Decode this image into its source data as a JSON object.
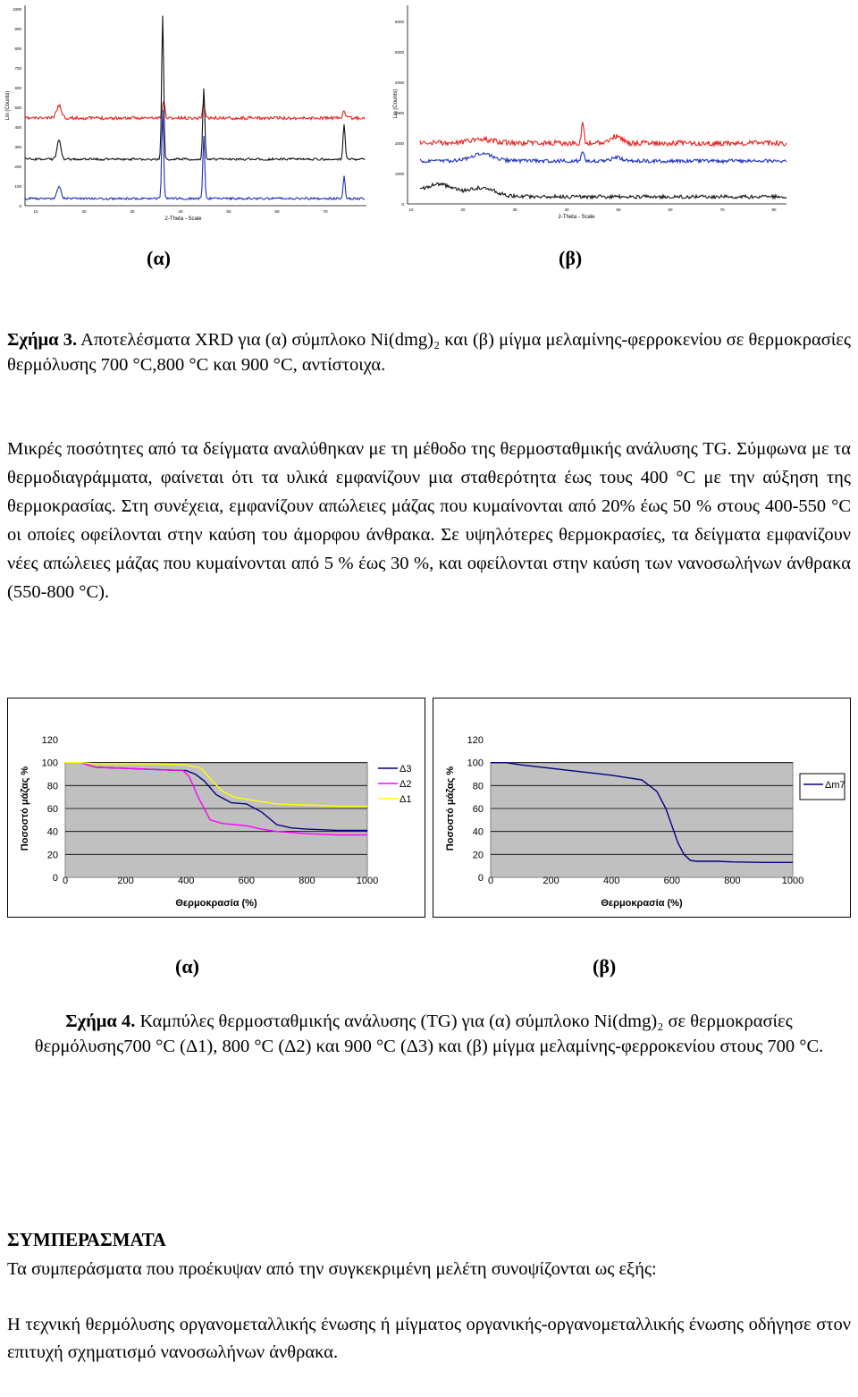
{
  "figure3": {
    "panel_a": {
      "ylabel": "Lin (Counts)",
      "xlabel": "2-Theta - Scale",
      "sublabel": "(α)",
      "yticks": [
        "0",
        "100",
        "200",
        "300",
        "400",
        "500",
        "600",
        "700",
        "800",
        "900",
        "1000"
      ],
      "xticks": [
        "10",
        "20",
        "30",
        "40",
        "50",
        "60",
        "70"
      ]
    },
    "panel_b": {
      "ylabel": "Lin (Counts)",
      "xlabel": "2-Theta - Scale",
      "sublabel": "(β)",
      "yticks": [
        "0",
        "1000",
        "2000",
        "3000",
        "4000",
        "5000",
        "6000"
      ],
      "xticks": [
        "10",
        "20",
        "30",
        "40",
        "50",
        "60",
        "70",
        "80"
      ]
    },
    "colors": {
      "red": "#e8211d",
      "black": "#111111",
      "blue": "#1f2fbf"
    },
    "caption_bold": "Σχήμα 3.",
    "caption_text": " Αποτελέσματα XRD για (α) σύμπλοκο Ni(dmg)₂ και (β) μίγμα μελαμίνης-φερροκενίου σε θερμοκρασίες θερμόλυσης 700 °C,800 °C και 900 °C, αντίστοιχα."
  },
  "paragraph": "Μικρές ποσότητες από τα δείγματα αναλύθηκαν με τη μέθοδο της θερμοσταθμικής ανάλυσης TG. Σύμφωνα με τα θερμοδιαγράμματα, φαίνεται ότι τα υλικά εμφανίζουν μια σταθερότητα έως τους 400 °C με την αύξηση της θερμοκρασίας. Στη συνέχεια, εμφανίζουν απώλειες μάζας που κυμαίνονται από 20% έως 50 % στους 400-550 °C οι οποίες οφείλονται στην καύση του άμορφου άνθρακα. Σε υψηλότερες θερμοκρασίες, τα δείγματα εμφανίζουν νέες απώλειες μάζας που κυμαίνονται από 5 % έως 30 %, και οφείλονται στην καύση των νανοσωλήνων άνθρακα (550-800 °C).",
  "figure4": {
    "sublabel_a": "(α)",
    "sublabel_b": "(β)",
    "caption_bold": "Σχήμα 4.",
    "caption_text": " Καμπύλες θερμοσταθμικής ανάλυσης (TG) για (α) σύμπλοκο Ni(dmg)₂ σε θερμοκρασίες θερμόλυσης700 °C (Δ1), 800 °C (Δ2) και 900 °C (Δ3) και (β) μίγμα μελαμίνης-φερροκενίου στους 700 °C."
  },
  "chart_data": [
    {
      "type": "line",
      "xlabel": "Θερμοκρασία (%)",
      "ylabel": "Ποσοστό μάζας %",
      "xlim": [
        0,
        1000
      ],
      "ylim": [
        0,
        120
      ],
      "xticks": [
        0,
        200,
        400,
        600,
        800,
        1000
      ],
      "yticks": [
        0,
        20,
        40,
        60,
        80,
        100,
        120
      ],
      "plot_background": "#c0c0c0",
      "grid": "horizontal",
      "legend_position": "right",
      "series": [
        {
          "name": "Δ3",
          "color": "#000080",
          "x": [
            0,
            50,
            100,
            200,
            300,
            400,
            430,
            460,
            500,
            550,
            600,
            650,
            700,
            750,
            800,
            900,
            1000
          ],
          "y": [
            100,
            100,
            96,
            95,
            94,
            93,
            90,
            84,
            72,
            65,
            64,
            57,
            46,
            43,
            42,
            41,
            41
          ]
        },
        {
          "name": "Δ2",
          "color": "#ff00ff",
          "x": [
            0,
            50,
            100,
            200,
            300,
            390,
            410,
            440,
            480,
            520,
            560,
            600,
            650,
            700,
            800,
            900,
            1000
          ],
          "y": [
            100,
            100,
            96,
            95,
            94,
            93,
            88,
            70,
            50,
            47,
            46,
            45,
            42,
            40,
            38,
            37,
            37
          ]
        },
        {
          "name": "Δ1",
          "color": "#ffff00",
          "x": [
            0,
            50,
            100,
            200,
            300,
            400,
            450,
            480,
            520,
            560,
            600,
            650,
            700,
            800,
            900,
            1000
          ],
          "y": [
            100,
            100,
            99,
            99,
            99,
            98,
            95,
            86,
            75,
            70,
            68,
            66,
            64,
            63,
            62,
            62
          ]
        }
      ]
    },
    {
      "type": "line",
      "xlabel": "Θερμοκρασία (%)",
      "ylabel": "Ποσοστό μάζας %",
      "xlim": [
        0,
        1000
      ],
      "ylim": [
        0,
        120
      ],
      "xticks": [
        0,
        200,
        400,
        600,
        800,
        1000
      ],
      "yticks": [
        0,
        20,
        40,
        60,
        80,
        100,
        120
      ],
      "plot_background": "#c0c0c0",
      "grid": "horizontal",
      "legend_position": "right",
      "series": [
        {
          "name": "Δm7",
          "color": "#000080",
          "x": [
            0,
            50,
            100,
            200,
            300,
            400,
            450,
            500,
            550,
            580,
            600,
            620,
            640,
            660,
            680,
            700,
            750,
            800,
            900,
            1000
          ],
          "y": [
            100,
            100,
            98,
            95,
            92,
            89,
            87,
            85,
            75,
            60,
            45,
            30,
            20,
            15,
            14,
            14,
            14,
            13.5,
            13,
            13
          ]
        }
      ]
    }
  ],
  "conclusions": {
    "heading": "ΣΥΜΠΕΡΑΣΜΑΤΑ",
    "p1": "Τα συμπεράσματα που προέκυψαν από την συγκεκριμένη μελέτη συνοψίζονται ως εξής:",
    "p2": "Η τεχνική θερμόλυσης οργανομεταλλικής ένωσης ή μίγματος οργανικής-οργανομεταλλικής ένωσης οδήγησε στον επιτυχή σχηματισμό νανοσωλήνων άνθρακα."
  }
}
